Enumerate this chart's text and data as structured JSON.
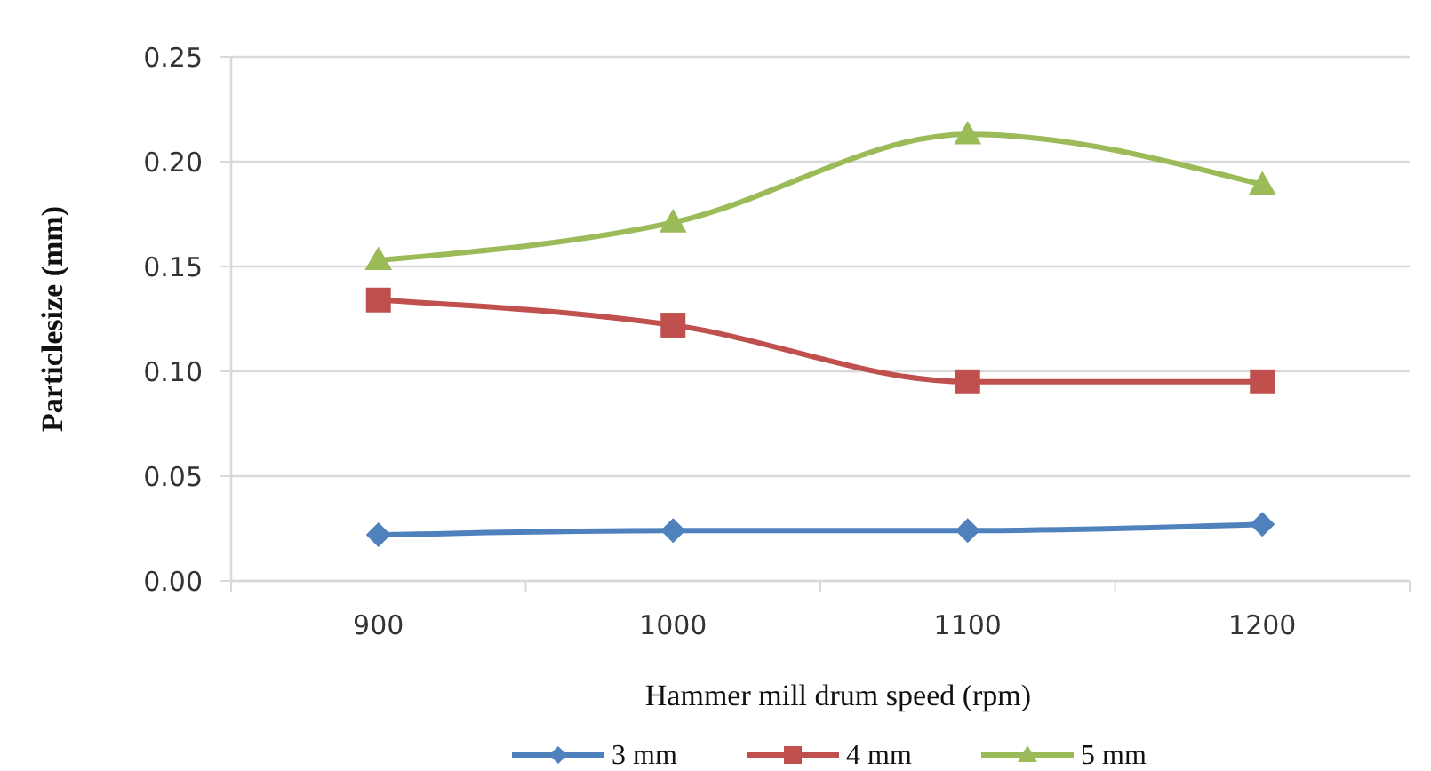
{
  "chart_data": {
    "type": "line",
    "xlabel": "Hammer mill drum speed (rpm)",
    "ylabel": "Particlesize (mm)",
    "categories": [
      "900",
      "1000",
      "1100",
      "1200"
    ],
    "series": [
      {
        "name": "3 mm",
        "color": "#4f81bd",
        "marker": "diamond",
        "values": [
          0.022,
          0.024,
          0.024,
          0.027
        ]
      },
      {
        "name": "4 mm",
        "color": "#c0504d",
        "marker": "square",
        "values": [
          0.134,
          0.122,
          0.095,
          0.095
        ]
      },
      {
        "name": "5 mm",
        "color": "#9bbb59",
        "marker": "triangle",
        "values": [
          0.153,
          0.171,
          0.213,
          0.189
        ]
      }
    ],
    "ylim": [
      0,
      0.25
    ],
    "yticks": [
      {
        "value": 0,
        "label": "0.00"
      },
      {
        "value": 0.05,
        "label": "0.05"
      },
      {
        "value": 0.1,
        "label": "0.10"
      },
      {
        "value": 0.15,
        "label": "0.15"
      },
      {
        "value": 0.2,
        "label": "0.20"
      },
      {
        "value": 0.25,
        "label": "0.25"
      }
    ],
    "grid": "y",
    "legend": "bottom",
    "line_style": "solid"
  }
}
